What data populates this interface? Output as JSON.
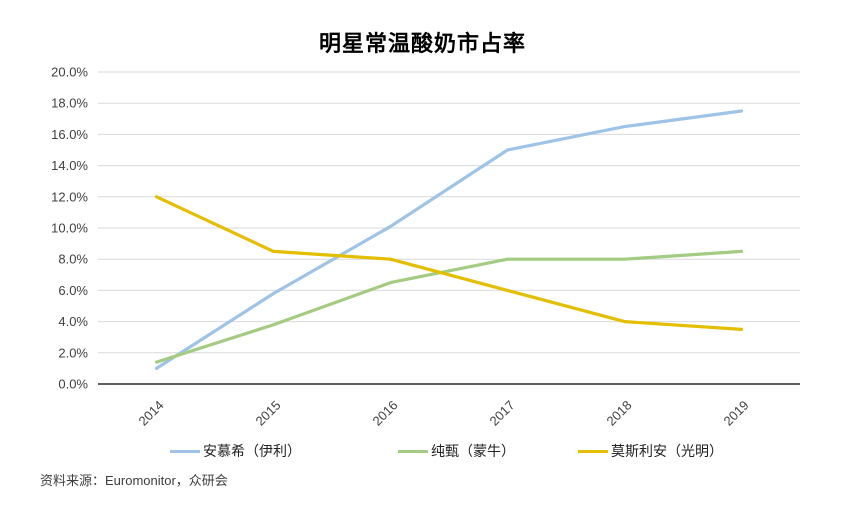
{
  "header": {
    "title": "明星常温酸奶市占率"
  },
  "footer": {
    "source": "资料来源：Euromonitor，众研会"
  },
  "chart_data": {
    "type": "line",
    "title": "明星常温酸奶市占率",
    "categories": [
      "2014",
      "2015",
      "2016",
      "2017",
      "2018",
      "2019"
    ],
    "series": [
      {
        "name": "安慕希（伊利）",
        "color": "#9DC3E6",
        "values": [
          1.0,
          5.8,
          10.1,
          15.0,
          16.5,
          17.5
        ]
      },
      {
        "name": "纯甄（蒙牛）",
        "color": "#A3CC82",
        "values": [
          1.4,
          3.8,
          6.5,
          8.0,
          8.0,
          8.5
        ]
      },
      {
        "name": "莫斯利安（光明）",
        "color": "#E4BE00",
        "values": [
          12.0,
          8.5,
          8.0,
          6.0,
          4.0,
          3.5
        ]
      }
    ],
    "xlabel": "",
    "ylabel": "",
    "ylim": [
      0,
      20
    ],
    "ytick_step": 2,
    "ytick_suffix": "%",
    "ytick_decimals": 1,
    "x_tick_rotation_deg": -45,
    "grid": "horizontal",
    "legend_position": "bottom",
    "gridline_color": "#D9D9D9",
    "axis_color": "#000000",
    "tick_label_color": "#404040"
  }
}
